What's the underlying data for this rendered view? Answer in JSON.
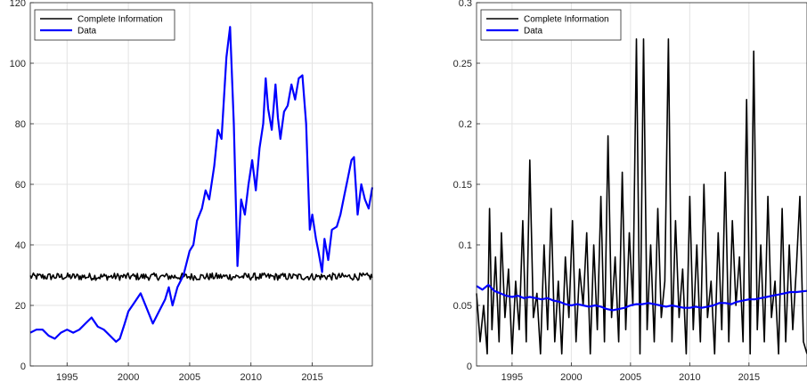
{
  "chart_data": [
    {
      "type": "line",
      "xlim": [
        1992,
        2019.9
      ],
      "ylim": [
        0,
        120
      ],
      "grid": true,
      "legend_placement": "top-left",
      "x_ticks": [
        1995,
        2000,
        2005,
        2010,
        2015
      ],
      "y_ticks": [
        0,
        20,
        40,
        60,
        80,
        100,
        120
      ],
      "x_tick_labels": [
        "1995",
        "2000",
        "2005",
        "2010",
        "2015"
      ],
      "y_tick_labels": [
        "0",
        "20",
        "40",
        "60",
        "80",
        "100",
        "120"
      ],
      "series": [
        {
          "name": "Complete Information",
          "color": "#000000",
          "noisy": true,
          "noise_amp": 1.2,
          "x": [
            1992,
            2019.9
          ],
          "y": [
            29.5,
            29.5
          ]
        },
        {
          "name": "Data",
          "color": "#0000ff",
          "x": [
            1992,
            1992.5,
            1993,
            1993.5,
            1994,
            1994.5,
            1995,
            1995.5,
            1996,
            1996.5,
            1997,
            1997.5,
            1998,
            1998.5,
            1999,
            1999.3,
            1999.7,
            2000,
            2000.5,
            2001,
            2001.5,
            2002,
            2002.5,
            2003,
            2003.3,
            2003.6,
            2004,
            2004.5,
            2005,
            2005.3,
            2005.6,
            2006,
            2006.3,
            2006.6,
            2007,
            2007.3,
            2007.6,
            2008,
            2008.3,
            2008.6,
            2008.9,
            2009.2,
            2009.5,
            2009.8,
            2010.1,
            2010.4,
            2010.7,
            2011,
            2011.2,
            2011.4,
            2011.7,
            2012,
            2012.2,
            2012.4,
            2012.7,
            2013,
            2013.3,
            2013.6,
            2013.9,
            2014.2,
            2014.5,
            2014.8,
            2015,
            2015.3,
            2015.5,
            2015.8,
            2016,
            2016.3,
            2016.6,
            2017,
            2017.3,
            2017.6,
            2017.9,
            2018.2,
            2018.4,
            2018.7,
            2019,
            2019.3,
            2019.6,
            2019.9
          ],
          "y": [
            11,
            12,
            12,
            10,
            9,
            11,
            12,
            11,
            12,
            14,
            16,
            13,
            12,
            10,
            8,
            9,
            14,
            18,
            21,
            24,
            19,
            14,
            18,
            22,
            26,
            20,
            26,
            30,
            38,
            40,
            48,
            52,
            58,
            55,
            66,
            78,
            75,
            102,
            112,
            80,
            33,
            55,
            50,
            60,
            68,
            58,
            72,
            80,
            95,
            85,
            78,
            93,
            82,
            75,
            84,
            86,
            93,
            88,
            95,
            96,
            80,
            45,
            50,
            42,
            38,
            31,
            42,
            35,
            45,
            46,
            50,
            56,
            62,
            68,
            69,
            50,
            60,
            55,
            52,
            59
          ]
        }
      ]
    },
    {
      "type": "line",
      "xlim": [
        1992,
        2019.9
      ],
      "ylim": [
        0,
        0.3
      ],
      "grid": true,
      "legend_placement": "top-left",
      "x_ticks": [
        1995,
        2000,
        2005,
        2010,
        2015
      ],
      "y_ticks": [
        0,
        0.05,
        0.1,
        0.15,
        0.2,
        0.25,
        0.3
      ],
      "x_tick_labels": [
        "1995",
        "2000",
        "2005",
        "2010",
        "2015"
      ],
      "y_tick_labels": [
        "0",
        "0.05",
        "0.1",
        "0.15",
        "0.2",
        "0.25",
        "0.3"
      ],
      "series": [
        {
          "name": "Complete Information",
          "color": "#000000",
          "x": [
            1992,
            1992.3,
            1992.6,
            1992.9,
            1993.1,
            1993.3,
            1993.6,
            1993.9,
            1994.1,
            1994.4,
            1994.7,
            1995,
            1995.3,
            1995.6,
            1995.9,
            1996.2,
            1996.5,
            1996.8,
            1997.1,
            1997.4,
            1997.7,
            1998,
            1998.3,
            1998.6,
            1998.9,
            1999.2,
            1999.5,
            1999.8,
            2000.1,
            2000.4,
            2000.7,
            2001,
            2001.3,
            2001.6,
            2001.9,
            2002.2,
            2002.5,
            2002.8,
            2003.1,
            2003.4,
            2003.7,
            2004,
            2004.3,
            2004.6,
            2004.9,
            2005.2,
            2005.5,
            2005.8,
            2006.1,
            2006.4,
            2006.7,
            2007,
            2007.3,
            2007.6,
            2007.9,
            2008.2,
            2008.5,
            2008.8,
            2009.1,
            2009.4,
            2009.7,
            2010,
            2010.3,
            2010.6,
            2010.9,
            2011.2,
            2011.5,
            2011.8,
            2012.1,
            2012.4,
            2012.7,
            2013,
            2013.3,
            2013.6,
            2013.9,
            2014.2,
            2014.5,
            2014.8,
            2015.1,
            2015.4,
            2015.7,
            2016,
            2016.3,
            2016.6,
            2016.9,
            2017.2,
            2017.5,
            2017.8,
            2018.1,
            2018.4,
            2018.7,
            2019,
            2019.3,
            2019.6,
            2019.9
          ],
          "y": [
            0.06,
            0.02,
            0.05,
            0.01,
            0.13,
            0.03,
            0.09,
            0.02,
            0.11,
            0.04,
            0.08,
            0.01,
            0.07,
            0.03,
            0.12,
            0.02,
            0.17,
            0.04,
            0.06,
            0.01,
            0.1,
            0.03,
            0.13,
            0.02,
            0.07,
            0.01,
            0.09,
            0.04,
            0.12,
            0.02,
            0.08,
            0.05,
            0.11,
            0.01,
            0.1,
            0.03,
            0.14,
            0.02,
            0.19,
            0.04,
            0.09,
            0.02,
            0.16,
            0.03,
            0.11,
            0.05,
            0.27,
            0.01,
            0.27,
            0.03,
            0.1,
            0.02,
            0.13,
            0.04,
            0.07,
            0.27,
            0.02,
            0.12,
            0.04,
            0.08,
            0.01,
            0.14,
            0.03,
            0.1,
            0.02,
            0.15,
            0.04,
            0.07,
            0.01,
            0.11,
            0.03,
            0.16,
            0.02,
            0.12,
            0.05,
            0.09,
            0.02,
            0.22,
            0.01,
            0.26,
            0.03,
            0.1,
            0.02,
            0.14,
            0.04,
            0.07,
            0.01,
            0.13,
            0.02,
            0.1,
            0.03,
            0.08,
            0.14,
            0.02,
            0.01
          ]
        },
        {
          "name": "Data",
          "color": "#0000ff",
          "x": [
            1992,
            1992.5,
            1993,
            1993.5,
            1994,
            1994.5,
            1995,
            1995.5,
            1996,
            1996.5,
            1997,
            1997.5,
            1998,
            1998.5,
            1999,
            1999.5,
            2000,
            2000.5,
            2001,
            2001.5,
            2002,
            2002.5,
            2003,
            2003.5,
            2004,
            2004.5,
            2005,
            2005.5,
            2006,
            2006.5,
            2007,
            2007.5,
            2008,
            2008.5,
            2009,
            2009.5,
            2010,
            2010.5,
            2011,
            2011.5,
            2012,
            2012.5,
            2013,
            2013.5,
            2014,
            2014.5,
            2015,
            2015.5,
            2016,
            2016.5,
            2017,
            2017.5,
            2018,
            2018.5,
            2019,
            2019.9
          ],
          "y": [
            0.066,
            0.063,
            0.067,
            0.062,
            0.06,
            0.058,
            0.057,
            0.058,
            0.056,
            0.057,
            0.056,
            0.055,
            0.056,
            0.054,
            0.053,
            0.051,
            0.05,
            0.051,
            0.05,
            0.049,
            0.05,
            0.049,
            0.047,
            0.046,
            0.047,
            0.048,
            0.05,
            0.051,
            0.051,
            0.052,
            0.051,
            0.05,
            0.049,
            0.05,
            0.049,
            0.048,
            0.048,
            0.049,
            0.048,
            0.049,
            0.05,
            0.052,
            0.052,
            0.051,
            0.053,
            0.054,
            0.055,
            0.055,
            0.056,
            0.057,
            0.058,
            0.059,
            0.06,
            0.061,
            0.061,
            0.062
          ]
        }
      ]
    }
  ]
}
